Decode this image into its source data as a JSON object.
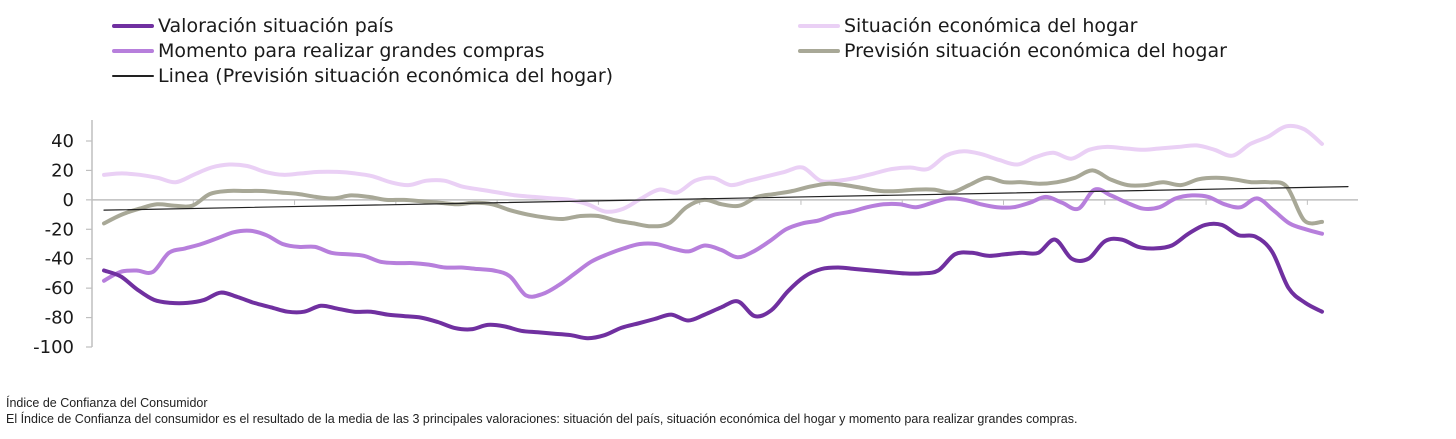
{
  "chart_data": {
    "type": "line",
    "title": "",
    "xlabel": "",
    "ylabel": "",
    "ylim": [
      -100,
      40
    ],
    "yticks": [
      40,
      20,
      0,
      -20,
      -40,
      -60,
      -80,
      -100
    ],
    "legend_position": "top",
    "series": [
      {
        "name": "Valoración situación país",
        "color": "#7030A0",
        "width": 4,
        "values": [
          -48,
          -52,
          -61,
          -68,
          -70,
          -70,
          -68,
          -63,
          -66,
          -70,
          -73,
          -76,
          -76,
          -72,
          -74,
          -76,
          -76,
          -78,
          -79,
          -80,
          -83,
          -87,
          -88,
          -85,
          -86,
          -89,
          -90,
          -91,
          -92,
          -94,
          -92,
          -87,
          -84,
          -81,
          -78,
          -82,
          -78,
          -73,
          -69,
          -79,
          -75,
          -62,
          -52,
          -47,
          -46,
          -47,
          -48,
          -49,
          -50,
          -50,
          -48,
          -37,
          -36,
          -38,
          -37,
          -36,
          -36,
          -27,
          -40,
          -40,
          -28,
          -27,
          -32,
          -33,
          -31,
          -23,
          -17,
          -17,
          -24,
          -25,
          -35,
          -60,
          -70,
          -76
        ]
      },
      {
        "name": "Situación económica del hogar",
        "color": "#EAD0F5",
        "width": 4,
        "values": [
          17,
          18,
          17,
          15,
          12,
          17,
          22,
          24,
          23,
          19,
          17,
          18,
          19,
          19,
          18,
          16,
          12,
          10,
          13,
          13,
          9,
          7,
          5,
          3,
          2,
          1,
          0,
          -3,
          -8,
          -6,
          1,
          7,
          5,
          13,
          15,
          10,
          13,
          16,
          19,
          22,
          13,
          13,
          15,
          18,
          21,
          22,
          21,
          30,
          33,
          31,
          27,
          24,
          29,
          32,
          28,
          34,
          36,
          35,
          34,
          35,
          36,
          37,
          34,
          30,
          38,
          43,
          50,
          48,
          38
        ]
      },
      {
        "name": "Momento para realizar grandes compras",
        "color": "#B77FDC",
        "width": 4,
        "values": [
          -55,
          -49,
          -48,
          -49,
          -36,
          -33,
          -30,
          -26,
          -22,
          -21,
          -24,
          -30,
          -32,
          -32,
          -36,
          -37,
          -38,
          -42,
          -43,
          -43,
          -44,
          -46,
          -46,
          -47,
          -48,
          -52,
          -65,
          -64,
          -58,
          -50,
          -42,
          -37,
          -33,
          -30,
          -30,
          -33,
          -35,
          -31,
          -34,
          -39,
          -35,
          -28,
          -20,
          -16,
          -14,
          -10,
          -8,
          -5,
          -3,
          -3,
          -5,
          -2,
          1,
          0,
          -3,
          -5,
          -5,
          -2,
          2,
          -2,
          -6,
          7,
          3,
          -2,
          -6,
          -5,
          1,
          3,
          2,
          -3,
          -5,
          1,
          -7,
          -16,
          -20,
          -23
        ]
      },
      {
        "name": "Previsión situación económica del hogar",
        "color": "#A8A897",
        "width": 4,
        "values": [
          -16,
          -10,
          -6,
          -3,
          -4,
          -4,
          4,
          6,
          6,
          6,
          5,
          4,
          2,
          1,
          3,
          2,
          0,
          0,
          -1,
          -2,
          -3,
          -2,
          -3,
          -7,
          -10,
          -12,
          -13,
          -11,
          -11,
          -14,
          -16,
          -18,
          -16,
          -5,
          0,
          -3,
          -4,
          2,
          4,
          6,
          9,
          11,
          10,
          8,
          6,
          6,
          7,
          7,
          5,
          10,
          15,
          12,
          12,
          11,
          12,
          15,
          20,
          14,
          10,
          10,
          12,
          10,
          14,
          15,
          14,
          12,
          12,
          9,
          -14,
          -15
        ]
      },
      {
        "name": "Linea (Previsión situación económica del hogar)",
        "color": "#222222",
        "width": 1.2,
        "values": [
          -7,
          9
        ]
      }
    ]
  },
  "caption": {
    "title": "Índice de Confianza del Consumidor",
    "description": "El Índice de Confianza del consumidor es el resultado de la media de las 3 principales valoraciones: situación del país, situación económica del hogar y momento para realizar grandes compras."
  }
}
